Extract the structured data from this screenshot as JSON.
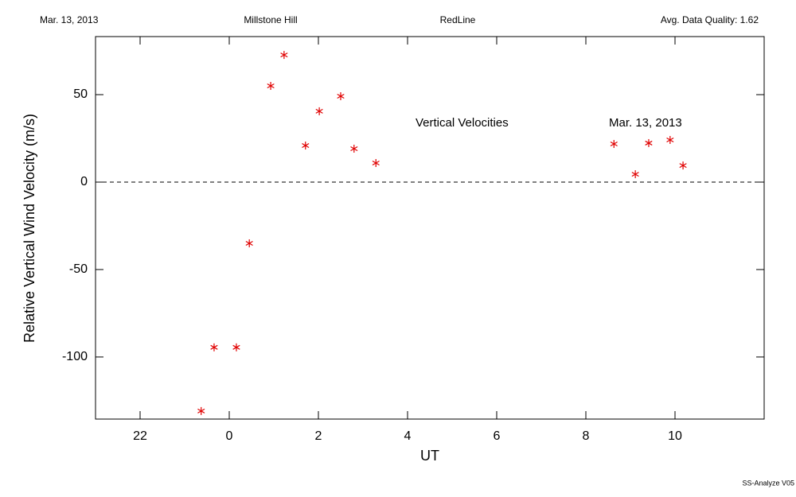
{
  "header": {
    "date": "Mar. 13, 2013",
    "site": "Millstone Hill",
    "instrument": "RedLine",
    "quality": "Avg. Data Quality: 1.62"
  },
  "footer": "SS-Analyze V05",
  "chart_data": {
    "type": "scatter",
    "xlabel": "UT",
    "ylabel": "Relative Vertical Wind Velocity (m/s)",
    "annotations": [
      "Vertical Velocities",
      "Mar. 13, 2013"
    ],
    "color": "#e00000",
    "x": [
      -0.63,
      -0.34,
      0.16,
      0.45,
      0.93,
      1.23,
      1.71,
      2.02,
      2.5,
      2.8,
      3.29,
      8.63,
      9.11,
      9.41,
      9.89,
      10.18
    ],
    "values": [
      -130.9,
      -94.5,
      -94.5,
      -35,
      55,
      72.7,
      20.9,
      40.5,
      49.1,
      19.1,
      10.9,
      21.8,
      4.5,
      22.3,
      24.1,
      9.5
    ],
    "xlim": [
      -3,
      12
    ],
    "xticks": [
      {
        "value": -2,
        "label": "22"
      },
      0,
      2,
      4,
      6,
      8,
      10
    ],
    "ylim": [
      -135.5,
      83.2
    ],
    "yticks": [
      -100,
      -50,
      0,
      50
    ],
    "zero_line": true
  }
}
